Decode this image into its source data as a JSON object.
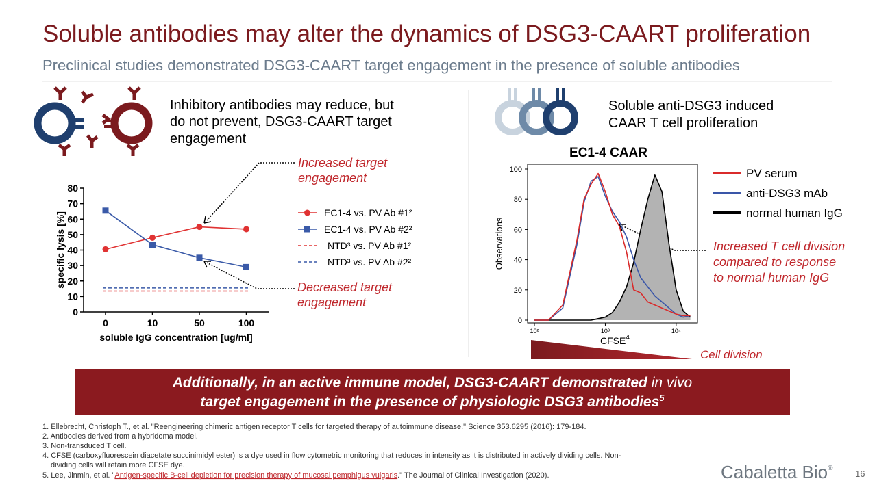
{
  "header": {
    "title": "Soluble antibodies may alter the dynamics of DSG3-CAART proliferation",
    "subtitle": "Preclinical studies demonstrated DSG3-CAART target engagement in the presence of soluble antibodies"
  },
  "left": {
    "caption": [
      "Inhibitory antibodies may reduce, but",
      "do not prevent, DSG3-CAART target",
      "engagement"
    ],
    "annotation_up": [
      "Increased target",
      "engagement"
    ],
    "annotation_down": [
      "Decreased target",
      "engagement"
    ]
  },
  "line_chart": {
    "type": "line",
    "y_label": "specific lysis [%]",
    "x_label": "soluble IgG concentration [ug/ml]",
    "categories": [
      "0",
      "10",
      "50",
      "100"
    ],
    "ylim": [
      0,
      80
    ],
    "yticks": [
      0,
      10,
      20,
      30,
      40,
      50,
      60,
      70,
      80
    ],
    "series": [
      {
        "name": "EC1-4 vs. PV Ab #1²",
        "color": "#e03232",
        "style": "solid",
        "marker": "circle",
        "values": [
          40.5,
          48,
          55,
          53.5
        ]
      },
      {
        "name": "EC1-4 vs. PV Ab #2²",
        "color": "#3a5aa8",
        "style": "solid",
        "marker": "square",
        "values": [
          65.5,
          43.5,
          35,
          29
        ]
      },
      {
        "name": "NTD³ vs. PV Ab #1²",
        "color": "#e03232",
        "style": "dashed",
        "values": [
          13.5,
          13.5,
          13.5,
          13.5
        ]
      },
      {
        "name": "NTD³ vs. PV Ab #2²",
        "color": "#3a5aa8",
        "style": "dashed",
        "values": [
          15.5,
          15.5,
          15.5,
          15.5
        ]
      }
    ]
  },
  "right": {
    "caption": [
      "Soluble anti-DSG3 induced",
      "CAAR T cell proliferation"
    ],
    "annotation": [
      "Increased T cell division",
      "compared to response",
      "to normal human IgG"
    ],
    "wedge_label": "Cell division"
  },
  "histogram": {
    "type": "line",
    "title": "EC1-4 CAAR",
    "y_label": "Observations",
    "x_label": "CFSE",
    "x_label_sup": "4",
    "log_x": true,
    "x": [
      100,
      158,
      251,
      398,
      501,
      631,
      794,
      1000,
      1259,
      1585,
      1995,
      2512,
      3162,
      3981,
      5012,
      6310,
      7943,
      10000,
      12589,
      15849
    ],
    "xlim": [
      80,
      20000
    ],
    "xticks": [
      {
        "value": 100,
        "label": "10²"
      },
      {
        "value": 1000,
        "label": "10³"
      },
      {
        "value": 10000,
        "label": "10⁴"
      }
    ],
    "ylim": [
      0,
      100
    ],
    "yticks": [
      0,
      20,
      40,
      60,
      80,
      100
    ],
    "series": [
      {
        "name": "PV serum",
        "color": "#d92b2b",
        "values": [
          0,
          0,
          10,
          53,
          80,
          90,
          97,
          85,
          70,
          62,
          45,
          20,
          18,
          12,
          10,
          8,
          6,
          4,
          3,
          3
        ]
      },
      {
        "name": "anti-DSG3 mAb",
        "color": "#3a56a8",
        "values": [
          0,
          0,
          8,
          50,
          78,
          92,
          95,
          82,
          72,
          65,
          55,
          40,
          28,
          22,
          16,
          12,
          8,
          4,
          2,
          3
        ]
      },
      {
        "name": "normal human IgG",
        "color": "#000000",
        "fill": "#b3b3b3",
        "values": [
          0,
          0,
          0,
          0,
          0,
          0,
          1,
          2,
          5,
          12,
          22,
          38,
          60,
          80,
          96,
          85,
          50,
          20,
          6,
          2
        ]
      }
    ]
  },
  "banner": {
    "line1_bold": "Additionally, in an active immune model, DSG3-CAART demonstrated",
    "line1_plain": " in vivo",
    "line2": "target engagement in the presence of physiologic DSG3 antibodies",
    "line2_sup": "5"
  },
  "footnotes": [
    "1. Ellebrecht, Christoph T., et al. \"Reengineering chimeric antigen receptor T cells for targeted therapy of autoimmune disease.\" Science 353.6295 (2016): 179-184.",
    "2. Antibodies derived from a hybridoma model.",
    "3. Non-transduced T cell.",
    "4. CFSE (carboxyfluorescein diacetate succinimidyl ester) is a dye used in flow cytometric monitoring that reduces in intensity as it is distributed in actively dividing cells. Non-",
    "dividing cells will retain more CFSE dye."
  ],
  "footnote5": {
    "prefix": "5. Lee, Jinmin, et al. \"",
    "link": "Antigen-specific B-cell depletion for precision therapy of mucosal pemphigus vulgaris",
    "suffix": ".\" The Journal of Clinical Investigation (2020)."
  },
  "footer": {
    "logo": "Cabaletta Bio",
    "logo_mark": "®",
    "page": "16"
  }
}
